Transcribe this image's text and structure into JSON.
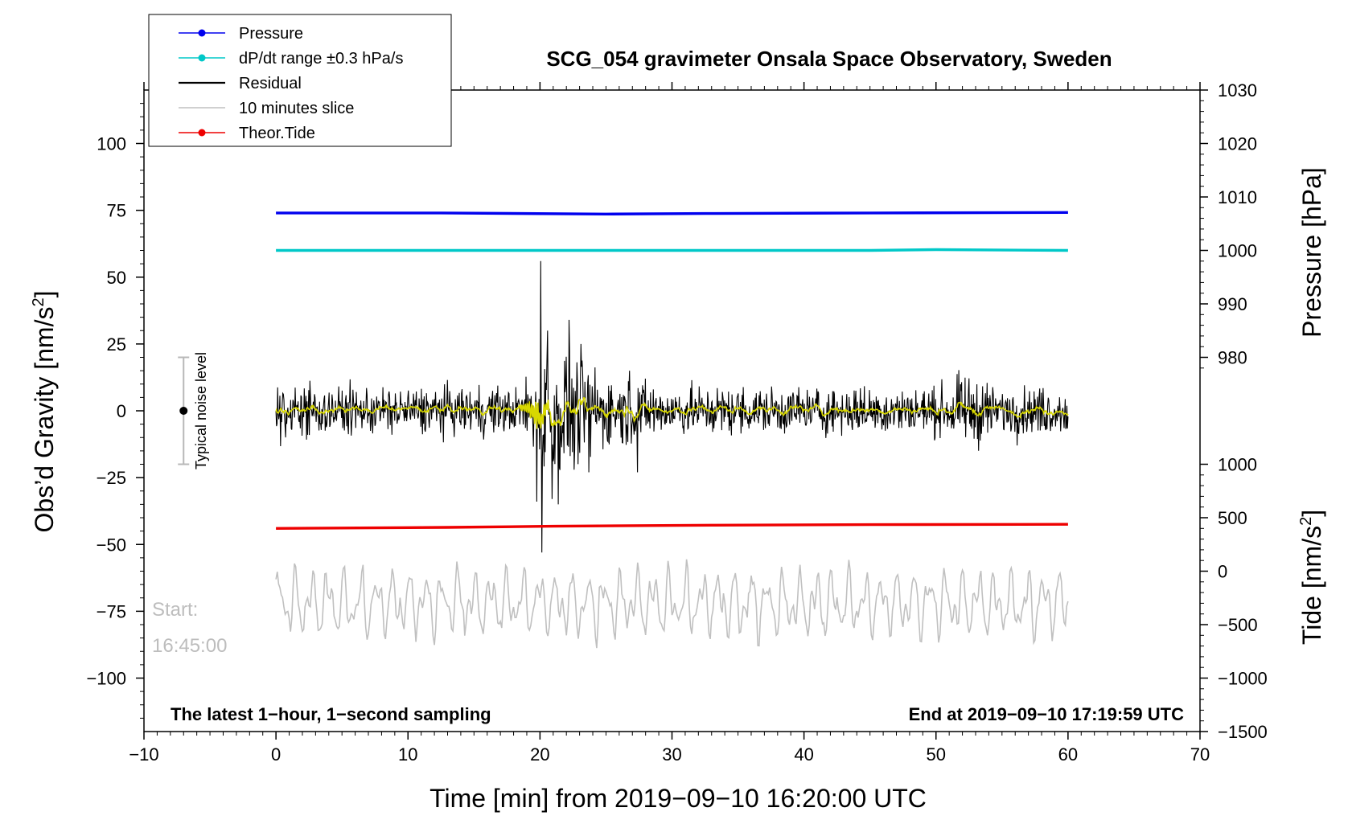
{
  "chart_data": {
    "type": "line",
    "title": "SCG_054 gravimeter Onsala Space Observatory, Sweden",
    "xlabel": "Time [min] from 2019−09−10 16:20:00 UTC",
    "ylabel_left": "Obs’d Gravity [nm/s²]",
    "ylabel_left_base": "Obs’d Gravity [nm/s",
    "ylabel_left_sup": "2",
    "ylabel_left_close": "]",
    "ylabel_right_pressure": "Pressure [hPa]",
    "ylabel_right_tide": "Tide [nm/s²]",
    "ylabel_right_tide_base": "Tide [nm/s",
    "ylabel_right_tide_sup": "2",
    "ylabel_right_tide_close": "]",
    "xlim": [
      -10,
      70
    ],
    "ylim_left": [
      -120,
      120
    ],
    "x_ticks": [
      -10,
      0,
      10,
      20,
      30,
      40,
      50,
      60,
      70
    ],
    "x_tick_labels": [
      "−10",
      "0",
      "10",
      "20",
      "30",
      "40",
      "50",
      "60",
      "70"
    ],
    "y_left_ticks": [
      100,
      75,
      50,
      25,
      0,
      -25,
      -50,
      -75,
      -100
    ],
    "y_left_tick_labels": [
      "100",
      "75",
      "50",
      "25",
      "0",
      "−25",
      "−50",
      "−75",
      "−100"
    ],
    "pressure_axis": {
      "ticks": [
        1030,
        1020,
        1010,
        1000,
        990,
        980
      ],
      "tick_labels": [
        "1030",
        "1020",
        "1010",
        "1000",
        "990",
        "980"
      ],
      "gravity_at_1030": 120,
      "gravity_per_hPa": 2
    },
    "tide_axis": {
      "ticks": [
        1000,
        500,
        0,
        -500,
        -1000,
        -1500
      ],
      "tick_labels": [
        "1000",
        "500",
        "0",
        "−500",
        "−1000",
        "−1500"
      ],
      "gravity_at_0": -60,
      "gravity_per_unit": 0.04
    },
    "series": [
      {
        "name": "Pressure",
        "color": "#0000ee",
        "axis": "pressure",
        "x": [
          0,
          12.5,
          25,
          32.5,
          45,
          60
        ],
        "values": [
          1007.0,
          1007.0,
          1006.8,
          1006.9,
          1007.0,
          1007.1
        ]
      },
      {
        "name": "dP/dt range ±0.3 hPa/s",
        "color": "#00c8c8",
        "axis": "left",
        "x": [
          0,
          15,
          30,
          45,
          50,
          60
        ],
        "values": [
          60,
          60,
          60,
          60,
          60.3,
          60
        ]
      },
      {
        "name": "Residual",
        "color": "#000000",
        "axis": "left",
        "x_start": 0,
        "x_end": 60,
        "typical_amplitude": 5,
        "events": [
          {
            "x": 20.05,
            "value": 56
          },
          {
            "x": 20.15,
            "value": -53
          },
          {
            "x": 19.75,
            "value": -34
          },
          {
            "x": 20.55,
            "value": 30
          },
          {
            "x": 20.9,
            "value": -33
          },
          {
            "x": 21.4,
            "value": -35
          },
          {
            "x": 22.2,
            "value": 34
          },
          {
            "x": 22.6,
            "value": -22
          },
          {
            "x": 23.1,
            "value": 25
          },
          {
            "x": 23.7,
            "value": -23
          },
          {
            "x": 26.8,
            "value": 15
          },
          {
            "x": 27.4,
            "value": -23
          }
        ]
      },
      {
        "name": "10 minutes slice",
        "color": "#c0c0c0",
        "axis": "left",
        "x_start": 0,
        "x_end": 60,
        "center": -72,
        "range": [
          -97,
          -55
        ]
      },
      {
        "name": "Theor.Tide",
        "color": "#ee0000",
        "axis": "tide",
        "x": [
          0,
          13,
          21,
          33,
          45,
          60
        ],
        "values": [
          400,
          410,
          420,
          430,
          435,
          438
        ]
      },
      {
        "name": "smoothed residual",
        "color": "#d8d800",
        "axis": "left",
        "x_start": 0,
        "x_end": 60
      }
    ],
    "legend": [
      {
        "label": "Pressure",
        "color": "#0000ee",
        "marker": true
      },
      {
        "label": "dP/dt range ±0.3 hPa/s",
        "color": "#00c8c8",
        "marker": true
      },
      {
        "label": "Residual",
        "color": "#000000",
        "marker": false
      },
      {
        "label": "10 minutes slice",
        "color": "#c0c0c0",
        "marker": false
      },
      {
        "label": "Theor.Tide",
        "color": "#ee0000",
        "marker": true
      }
    ],
    "legend_position": "top-left",
    "noise_indicator": {
      "label": "Typical noise level",
      "x": -7,
      "center": 0,
      "low": -20,
      "high": 20
    },
    "annotations": {
      "start_line1": "Start:",
      "start_line2": "16:45:00",
      "footer_left": "The latest 1−hour, 1−second sampling",
      "footer_right": "End at 2019−09−10 17:19:59 UTC"
    }
  }
}
